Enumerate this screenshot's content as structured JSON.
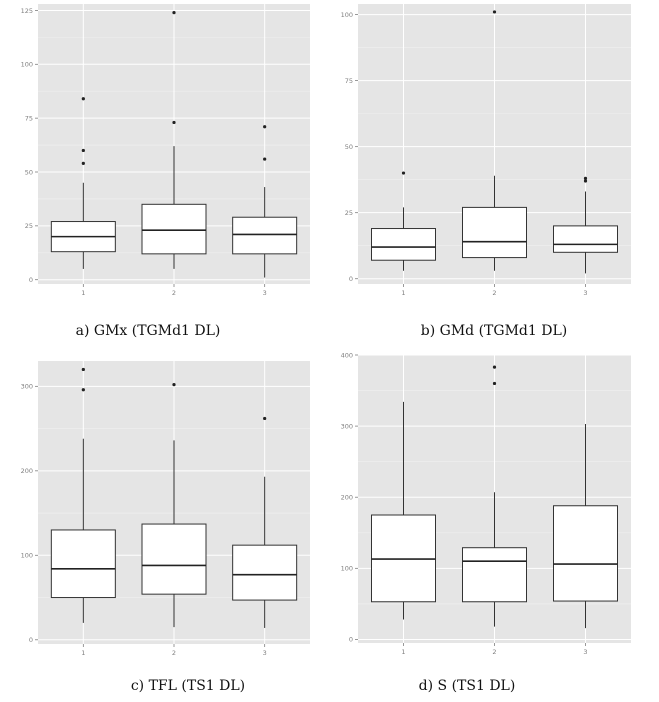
{
  "chart_data": [
    {
      "type": "boxplot",
      "title": "a) GMx (TGMd1 DL)",
      "categories": [
        "1",
        "2",
        "3"
      ],
      "ylim": [
        -2,
        128
      ],
      "yticks": [
        0,
        25,
        50,
        75,
        100,
        125
      ],
      "grid": true,
      "boxes": [
        {
          "category": "1",
          "whisker_low": 5,
          "q1": 13,
          "median": 20,
          "q3": 27,
          "whisker_high": 45,
          "outliers": [
            54,
            60,
            84
          ]
        },
        {
          "category": "2",
          "whisker_low": 5,
          "q1": 12,
          "median": 23,
          "q3": 35,
          "whisker_high": 62,
          "outliers": [
            73,
            124
          ]
        },
        {
          "category": "3",
          "whisker_low": 1,
          "q1": 12,
          "median": 21,
          "q3": 29,
          "whisker_high": 43,
          "outliers": [
            56,
            71
          ]
        }
      ]
    },
    {
      "type": "boxplot",
      "title": "b) GMd (TGMd1 DL)",
      "categories": [
        "1",
        "2",
        "3"
      ],
      "ylim": [
        -2,
        104
      ],
      "yticks": [
        0,
        25,
        50,
        75,
        100
      ],
      "grid": true,
      "boxes": [
        {
          "category": "1",
          "whisker_low": 3,
          "q1": 7,
          "median": 12,
          "q3": 19,
          "whisker_high": 27,
          "outliers": [
            40
          ]
        },
        {
          "category": "2",
          "whisker_low": 3,
          "q1": 8,
          "median": 14,
          "q3": 27,
          "whisker_high": 39,
          "outliers": [
            101
          ]
        },
        {
          "category": "3",
          "whisker_low": 2,
          "q1": 10,
          "median": 13,
          "q3": 20,
          "whisker_high": 33,
          "outliers": [
            37,
            38
          ]
        }
      ]
    },
    {
      "type": "boxplot",
      "title": "c) TFL (TS1 DL)",
      "categories": [
        "1",
        "2",
        "3"
      ],
      "ylim": [
        -5,
        330
      ],
      "yticks": [
        0,
        100,
        200,
        300
      ],
      "grid": true,
      "boxes": [
        {
          "category": "1",
          "whisker_low": 20,
          "q1": 50,
          "median": 84,
          "q3": 130,
          "whisker_high": 238,
          "outliers": [
            296,
            320
          ]
        },
        {
          "category": "2",
          "whisker_low": 15,
          "q1": 54,
          "median": 88,
          "q3": 137,
          "whisker_high": 236,
          "outliers": [
            302
          ]
        },
        {
          "category": "3",
          "whisker_low": 14,
          "q1": 47,
          "median": 77,
          "q3": 112,
          "whisker_high": 193,
          "outliers": [
            262
          ]
        }
      ]
    },
    {
      "type": "boxplot",
      "title": "d) S (TS1 DL)",
      "categories": [
        "1",
        "2",
        "3"
      ],
      "ylim": [
        -5,
        400
      ],
      "yticks": [
        0,
        100,
        200,
        300,
        400
      ],
      "grid": true,
      "boxes": [
        {
          "category": "1",
          "whisker_low": 28,
          "q1": 53,
          "median": 113,
          "q3": 175,
          "whisker_high": 334,
          "outliers": []
        },
        {
          "category": "2",
          "whisker_low": 18,
          "q1": 53,
          "median": 110,
          "q3": 129,
          "whisker_high": 207,
          "outliers": [
            360,
            383
          ]
        },
        {
          "category": "3",
          "whisker_low": 16,
          "q1": 54,
          "median": 106,
          "q3": 188,
          "whisker_high": 303,
          "outliers": []
        }
      ]
    }
  ]
}
